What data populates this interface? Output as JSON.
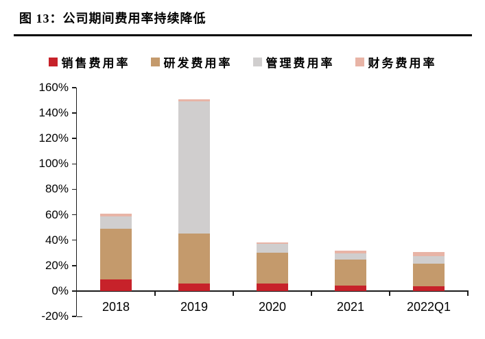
{
  "figure": {
    "title": "图 13：公司期间费用率持续降低"
  },
  "chart_data": {
    "type": "bar",
    "stacked": true,
    "title": "图 13：公司期间费用率持续降低",
    "categories": [
      "2018",
      "2019",
      "2020",
      "2021",
      "2022Q1"
    ],
    "series": [
      {
        "key": "sales-expense-ratio",
        "name": "销售费用率",
        "color": "#c7222a",
        "values": [
          9,
          6,
          6,
          4.5,
          3.5
        ]
      },
      {
        "key": "rnd-expense-ratio",
        "name": "研发费用率",
        "color": "#c49a6c",
        "values": [
          40,
          39,
          24,
          20,
          18
        ]
      },
      {
        "key": "admin-expense-ratio",
        "name": "管理费用率",
        "color": "#d0cece",
        "values": [
          9.5,
          104,
          7,
          5,
          6
        ]
      },
      {
        "key": "finance-expense-ratio",
        "name": "财务费用率",
        "color": "#e8b4a6",
        "values": [
          2.5,
          2,
          1,
          2,
          3
        ]
      }
    ],
    "totals": [
      61,
      151,
      38,
      31.5,
      30.5
    ],
    "ylim": [
      -20,
      160
    ],
    "ytick_step": 20,
    "ytick_labels": [
      "160%",
      "140%",
      "120%",
      "100%",
      "80%",
      "60%",
      "40%",
      "20%",
      "0%",
      "-20%"
    ],
    "xlabel": "",
    "ylabel": "",
    "legend_position": "top-center",
    "grid": false,
    "axis_color": "#1a1a1a"
  }
}
